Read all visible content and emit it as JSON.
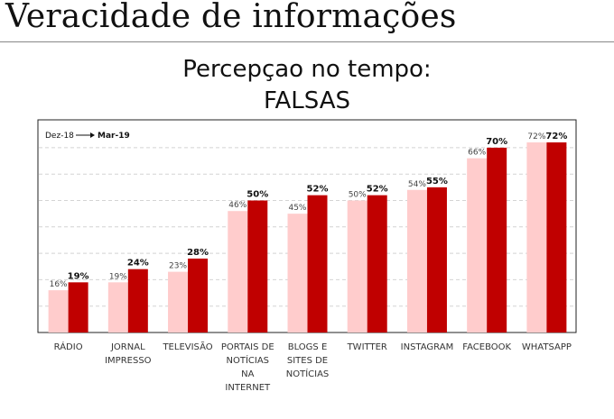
{
  "slide": {
    "title": "Veracidade de informações",
    "subtitle_line1": "Percepçao no tempo:",
    "subtitle_line2": "FALSAS"
  },
  "colors": {
    "series_2018": "#ffcccc",
    "series_2019": "#c00000"
  },
  "chart_data": {
    "type": "bar",
    "title": "Percepçao no tempo: FALSAS",
    "categories": [
      [
        "RÁDIO"
      ],
      [
        "JORNAL",
        "IMPRESSO"
      ],
      [
        "TELEVISÃO"
      ],
      [
        "PORTAIS DE",
        "NOTÍCIAS",
        "NA",
        "INTERNET"
      ],
      [
        "BLOGS E",
        "SITES DE",
        "NOTÍCIAS"
      ],
      [
        "TWITTER"
      ],
      [
        "INSTAGRAM"
      ],
      [
        "FACEBOOK"
      ],
      [
        "WHATSAPP"
      ]
    ],
    "series": [
      {
        "name": "Dez-18",
        "values": [
          16,
          19,
          23,
          46,
          45,
          50,
          54,
          66,
          72
        ],
        "labels": [
          "16%",
          "19%",
          "23%",
          "46%",
          "45%",
          "50%",
          "54%",
          "66%",
          "72%"
        ]
      },
      {
        "name": "Mar-19",
        "values": [
          19,
          24,
          28,
          50,
          52,
          52,
          55,
          70,
          72
        ],
        "labels": [
          "19%",
          "24%",
          "28%",
          "50%",
          "52%",
          "52%",
          "55%",
          "70%",
          "72%"
        ]
      }
    ],
    "ylim": [
      0,
      80
    ],
    "grid": true,
    "legend": {
      "from": "Dez-18",
      "to": "Mar-19",
      "placement": "top-left"
    }
  }
}
